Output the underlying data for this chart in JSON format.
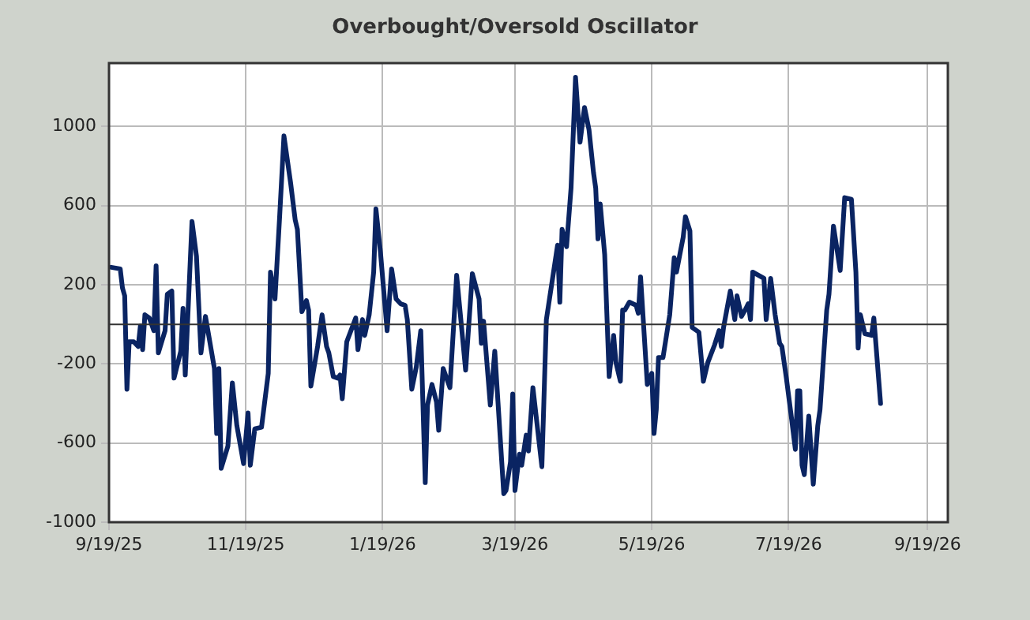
{
  "chart_data": {
    "type": "line",
    "title": "Overbought/Oversold Oscillator",
    "x": [
      "2025-09-20",
      "2025-09-24",
      "2025-09-25",
      "2025-09-26",
      "2025-09-27",
      "2025-09-28",
      "2025-09-30",
      "2025-10-02",
      "2025-10-03",
      "2025-10-04",
      "2025-10-05",
      "2025-10-07",
      "2025-10-09",
      "2025-10-10",
      "2025-10-11",
      "2025-10-14",
      "2025-10-15",
      "2025-10-17",
      "2025-10-18",
      "2025-10-21",
      "2025-10-22",
      "2025-10-23",
      "2025-10-26",
      "2025-10-28",
      "2025-10-30",
      "2025-11-01",
      "2025-11-05",
      "2025-11-06",
      "2025-11-07",
      "2025-11-08",
      "2025-11-11",
      "2025-11-13",
      "2025-11-15",
      "2025-11-18",
      "2025-11-20",
      "2025-11-21",
      "2025-11-23",
      "2025-11-26",
      "2025-11-29",
      "2025-11-30",
      "2025-12-02",
      "2025-12-04",
      "2025-12-06",
      "2025-12-09",
      "2025-12-11",
      "2025-12-12",
      "2025-12-14",
      "2025-12-16",
      "2025-12-17",
      "2025-12-18",
      "2025-12-21",
      "2025-12-23",
      "2025-12-25",
      "2025-12-26",
      "2025-12-28",
      "2025-12-30",
      "2025-12-31",
      "2026-01-01",
      "2026-01-03",
      "2026-01-07",
      "2026-01-08",
      "2026-01-10",
      "2026-01-11",
      "2026-01-13",
      "2026-01-15",
      "2026-01-16",
      "2026-01-18",
      "2026-01-21",
      "2026-01-23",
      "2026-01-25",
      "2026-01-27",
      "2026-01-29",
      "2026-01-30",
      "2026-02-01",
      "2026-02-03",
      "2026-02-05",
      "2026-02-07",
      "2026-02-08",
      "2026-02-10",
      "2026-02-12",
      "2026-02-13",
      "2026-02-15",
      "2026-02-18",
      "2026-02-21",
      "2026-02-25",
      "2026-02-28",
      "2026-03-03",
      "2026-03-04",
      "2026-03-05",
      "2026-03-08",
      "2026-03-10",
      "2026-03-14",
      "2026-03-15",
      "2026-03-17",
      "2026-03-18",
      "2026-03-19",
      "2026-03-21",
      "2026-03-22",
      "2026-03-24",
      "2026-03-25",
      "2026-03-27",
      "2026-03-31",
      "2026-04-02",
      "2026-04-07",
      "2026-04-08",
      "2026-04-09",
      "2026-04-11",
      "2026-04-13",
      "2026-04-15",
      "2026-04-17",
      "2026-04-19",
      "2026-04-21",
      "2026-04-23",
      "2026-04-24",
      "2026-04-25",
      "2026-04-26",
      "2026-04-28",
      "2026-04-30",
      "2026-05-02",
      "2026-05-03",
      "2026-05-05",
      "2026-05-06",
      "2026-05-07",
      "2026-05-09",
      "2026-05-12",
      "2026-05-13",
      "2026-05-14",
      "2026-05-17",
      "2026-05-19",
      "2026-05-20",
      "2026-05-21",
      "2026-05-22",
      "2026-05-24",
      "2026-05-27",
      "2026-05-29",
      "2026-05-30",
      "2026-06-02",
      "2026-06-03",
      "2026-06-05",
      "2026-06-06",
      "2026-06-09",
      "2026-06-11",
      "2026-06-13",
      "2026-06-16",
      "2026-06-18",
      "2026-06-19",
      "2026-06-20",
      "2026-06-23",
      "2026-06-25",
      "2026-06-26",
      "2026-06-28",
      "2026-06-30",
      "2026-07-01",
      "2026-07-02",
      "2026-07-03",
      "2026-07-08",
      "2026-07-09",
      "2026-07-11",
      "2026-07-13",
      "2026-07-15",
      "2026-07-16",
      "2026-07-18",
      "2026-07-20",
      "2026-07-22",
      "2026-07-23",
      "2026-07-24",
      "2026-07-25",
      "2026-07-26",
      "2026-07-28",
      "2026-07-30",
      "2026-08-01",
      "2026-08-02",
      "2026-08-05",
      "2026-08-06",
      "2026-08-08",
      "2026-08-11",
      "2026-08-13",
      "2026-08-16",
      "2026-08-18",
      "2026-08-19",
      "2026-08-20",
      "2026-08-22",
      "2026-08-25",
      "2026-08-26",
      "2026-08-29"
    ],
    "series": [
      {
        "color": "#0a2462",
        "values": [
          288,
          280,
          184,
          144,
          -328,
          -88,
          -88,
          -112,
          -8,
          -128,
          48,
          32,
          -32,
          296,
          -144,
          -32,
          152,
          168,
          -272,
          -136,
          80,
          -256,
          520,
          344,
          -144,
          40,
          -224,
          -552,
          -224,
          -728,
          -616,
          -296,
          -512,
          -704,
          -448,
          -712,
          -528,
          -520,
          -248,
          264,
          128,
          528,
          952,
          712,
          528,
          480,
          64,
          120,
          72,
          -312,
          -112,
          48,
          -112,
          -144,
          -264,
          -272,
          -256,
          -376,
          -88,
          32,
          -128,
          24,
          -56,
          48,
          264,
          584,
          368,
          -32,
          280,
          128,
          104,
          96,
          24,
          -328,
          -216,
          -32,
          -800,
          -408,
          -304,
          -392,
          -536,
          -224,
          -320,
          248,
          -232,
          256,
          128,
          -96,
          16,
          -408,
          -136,
          -856,
          -840,
          -696,
          -352,
          -840,
          -656,
          -712,
          -560,
          -640,
          -320,
          -720,
          24,
          400,
          112,
          480,
          392,
          688,
          1248,
          920,
          1096,
          984,
          768,
          688,
          432,
          608,
          352,
          -264,
          -56,
          -192,
          -288,
          72,
          72,
          112,
          96,
          56,
          240,
          -304,
          -248,
          -552,
          -432,
          -168,
          -168,
          48,
          336,
          264,
          440,
          544,
          472,
          -16,
          -40,
          -288,
          -192,
          -104,
          -32,
          -112,
          -16,
          168,
          24,
          144,
          40,
          80,
          104,
          24,
          264,
          232,
          24,
          232,
          48,
          -96,
          -112,
          -272,
          -448,
          -632,
          -336,
          -336,
          -712,
          -760,
          -464,
          -808,
          -512,
          -432,
          72,
          152,
          496,
          272,
          640,
          632,
          264,
          -120,
          48,
          -48,
          -56,
          32,
          -400
        ]
      }
    ],
    "xlim": [
      "2025-09-19",
      "2026-09-28"
    ],
    "xticks": [
      {
        "value": "2025-09-19",
        "label": "9/19/25"
      },
      {
        "value": "2025-11-19",
        "label": "11/19/25"
      },
      {
        "value": "2026-01-19",
        "label": "1/19/26"
      },
      {
        "value": "2026-03-19",
        "label": "3/19/26"
      },
      {
        "value": "2026-05-19",
        "label": "5/19/26"
      },
      {
        "value": "2026-07-19",
        "label": "7/19/26"
      },
      {
        "value": "2026-09-19",
        "label": "9/19/26"
      }
    ],
    "ylim": [
      -1000,
      1320
    ],
    "yticks": [
      -1000,
      -600,
      -200,
      200,
      600,
      1000
    ],
    "ref_lines": [
      {
        "axis": "y",
        "value": 0,
        "color": "#333333"
      }
    ],
    "grid": true,
    "legend": false,
    "marker": "none",
    "line_style": "solid"
  }
}
